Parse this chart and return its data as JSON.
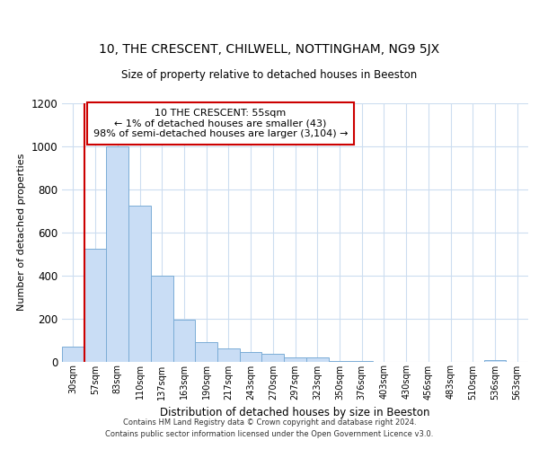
{
  "title": "10, THE CRESCENT, CHILWELL, NOTTINGHAM, NG9 5JX",
  "subtitle": "Size of property relative to detached houses in Beeston",
  "xlabel": "Distribution of detached houses by size in Beeston",
  "ylabel": "Number of detached properties",
  "bar_labels": [
    "30sqm",
    "57sqm",
    "83sqm",
    "110sqm",
    "137sqm",
    "163sqm",
    "190sqm",
    "217sqm",
    "243sqm",
    "270sqm",
    "297sqm",
    "323sqm",
    "350sqm",
    "376sqm",
    "403sqm",
    "430sqm",
    "456sqm",
    "483sqm",
    "510sqm",
    "536sqm",
    "563sqm"
  ],
  "bar_values": [
    70,
    525,
    1000,
    725,
    400,
    195,
    90,
    60,
    45,
    35,
    20,
    20,
    2,
    2,
    0,
    0,
    0,
    0,
    0,
    5,
    0
  ],
  "bar_color": "#c9ddf5",
  "bar_edge_color": "#7badd6",
  "annotation_title": "10 THE CRESCENT: 55sqm",
  "annotation_line1": "← 1% of detached houses are smaller (43)",
  "annotation_line2": "98% of semi-detached houses are larger (3,104) →",
  "annotation_box_color": "#ffffff",
  "annotation_box_edge_color": "#cc0000",
  "ylim": [
    0,
    1200
  ],
  "yticks": [
    0,
    200,
    400,
    600,
    800,
    1000,
    1200
  ],
  "footer_line1": "Contains HM Land Registry data © Crown copyright and database right 2024.",
  "footer_line2": "Contains public sector information licensed under the Open Government Licence v3.0.",
  "bg_color": "#ffffff",
  "grid_color": "#ccddf0",
  "red_line_color": "#cc0000"
}
